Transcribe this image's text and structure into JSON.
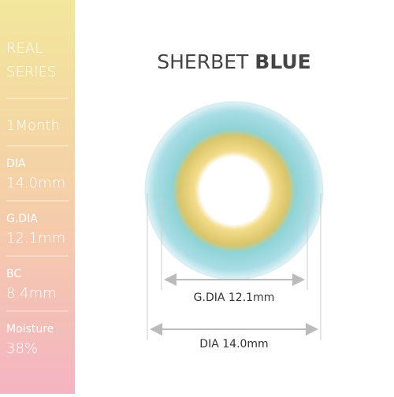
{
  "sidebar": {
    "series": [
      "REAL",
      "SERIES"
    ],
    "duration": "1Month",
    "specs": [
      {
        "label": "DIA",
        "value": "14.0mm"
      },
      {
        "label": "G.DIA",
        "value": "12.1mm"
      },
      {
        "label": "BC",
        "value": "8.4mm"
      },
      {
        "label": "Moisture",
        "value": "38%"
      }
    ]
  },
  "title": {
    "name": "SHERBET",
    "color": "BLUE"
  },
  "dimensions": [
    {
      "label": "G.DIA",
      "value": "12.1mm"
    },
    {
      "label": "DIA",
      "value": "14.0mm"
    }
  ]
}
